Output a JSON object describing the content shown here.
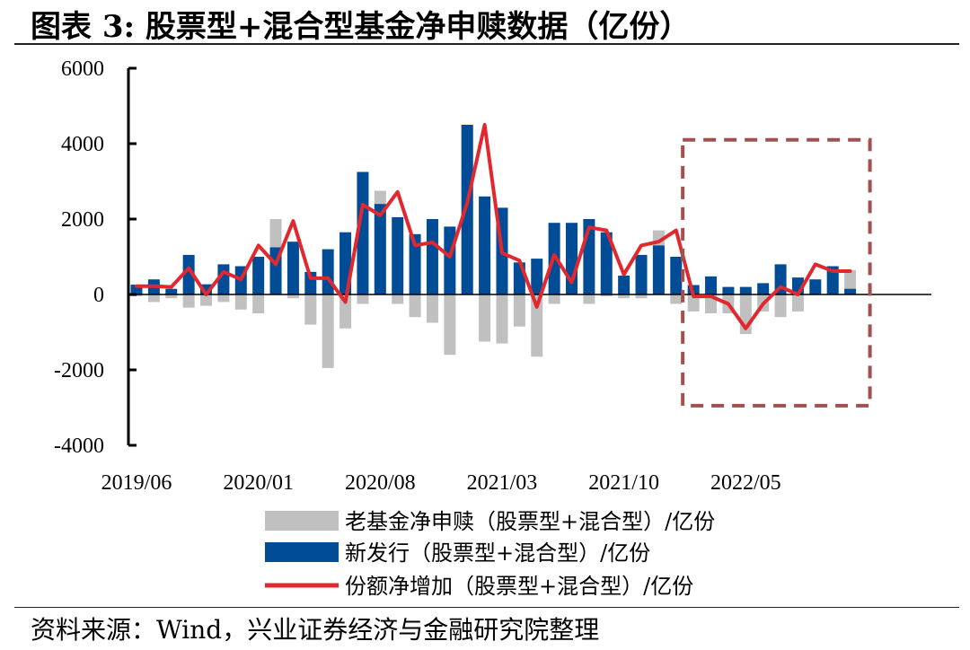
{
  "title": "图表 3:  股票型+混合型基金净申赎数据（亿份）",
  "source": "资料来源：Wind，兴业证券经济与金融研究院整理",
  "chart_data": {
    "type": "bar",
    "x_tick_labels": [
      "2019/06",
      "2020/01",
      "2020/08",
      "2021/03",
      "2021/10",
      "2022/05"
    ],
    "y_tick_labels": [
      "6000",
      "4000",
      "2000",
      "0",
      "-2000",
      "-4000"
    ],
    "ylim": [
      -4000,
      6000
    ],
    "grid": false,
    "legend_position": "bottom",
    "highlight_box": {
      "start_index": 32,
      "end_index": 42,
      "y_range": [
        -2950,
        4100
      ],
      "color": "#a0504e"
    },
    "categories": [
      "2019/06",
      "2019/07",
      "2019/08",
      "2019/09",
      "2019/10",
      "2019/11",
      "2019/12",
      "2020/01",
      "2020/02",
      "2020/03",
      "2020/04",
      "2020/05",
      "2020/06",
      "2020/07",
      "2020/08",
      "2020/09",
      "2020/10",
      "2020/11",
      "2020/12",
      "2021/01",
      "2021/02",
      "2021/03",
      "2021/04",
      "2021/05",
      "2021/06",
      "2021/07",
      "2021/08",
      "2021/09",
      "2021/10",
      "2021/11",
      "2021/12",
      "2022/01",
      "2022/02",
      "2022/03",
      "2022/04",
      "2022/05",
      "2022/06",
      "2022/07",
      "2022/08",
      "2022/09",
      "2022/10",
      "2022/11"
    ],
    "series": [
      {
        "name": "老基金净申赎（股票型+混合型）/亿份",
        "type": "bar",
        "color": "#c0c0c0",
        "values": [
          -50,
          -200,
          -100,
          -350,
          -300,
          -200,
          -400,
          -500,
          2000,
          -100,
          -800,
          -1950,
          -900,
          -250,
          2750,
          -250,
          -600,
          -750,
          -1600,
          4500,
          -1250,
          -1300,
          -850,
          -1650,
          -250,
          1700,
          -250,
          -50,
          -100,
          -100,
          1700,
          -250,
          -450,
          -500,
          -500,
          -1050,
          -450,
          -600,
          -450,
          300,
          700,
          650
        ]
      },
      {
        "name": "新发行（股票型+混合型）/亿份",
        "type": "bar",
        "color": "#004c97",
        "values": [
          260,
          400,
          150,
          1050,
          270,
          800,
          750,
          1000,
          1250,
          1400,
          600,
          1200,
          1650,
          3250,
          2400,
          2050,
          1600,
          2000,
          1800,
          4500,
          2600,
          2300,
          850,
          950,
          1900,
          1900,
          2000,
          1650,
          500,
          1050,
          1300,
          1000,
          250,
          480,
          200,
          200,
          300,
          800,
          450,
          400,
          750,
          150
        ]
      },
      {
        "name": "份额净增加（股票型+混合型）/亿份",
        "type": "line",
        "color": "#e0282e",
        "values": [
          220,
          220,
          200,
          700,
          0,
          600,
          400,
          1300,
          800,
          1950,
          430,
          430,
          -200,
          2380,
          2100,
          2720,
          1300,
          1380,
          1000,
          2430,
          4500,
          1100,
          900,
          -330,
          1050,
          320,
          1780,
          1700,
          530,
          1300,
          1400,
          1700,
          -50,
          -50,
          -250,
          -900,
          -250,
          200,
          0,
          800,
          620,
          620
        ]
      }
    ]
  }
}
